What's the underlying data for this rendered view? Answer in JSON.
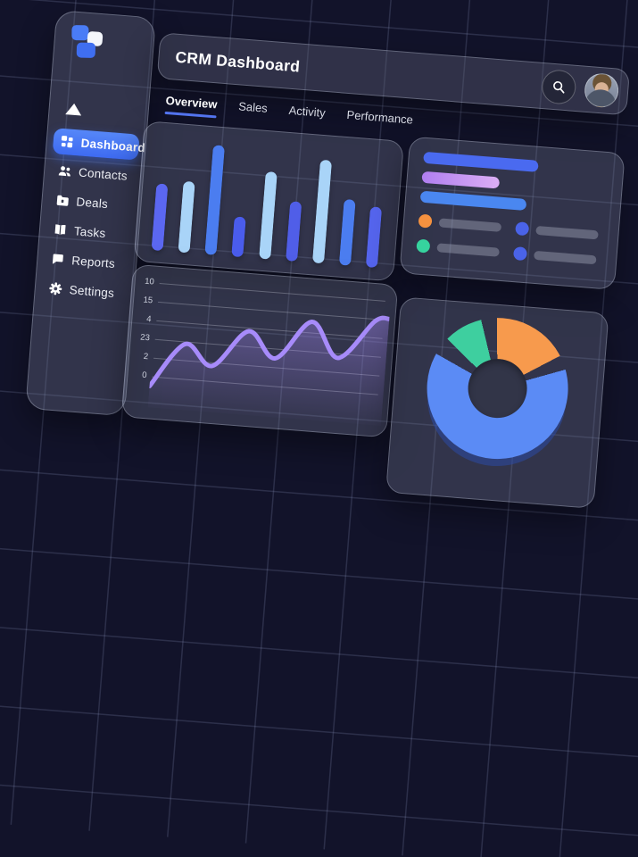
{
  "header": {
    "title": "CRM Dashboard"
  },
  "tabs": [
    {
      "label": "Overview",
      "active": true
    },
    {
      "label": "Sales",
      "active": false
    },
    {
      "label": "Activity",
      "active": false
    },
    {
      "label": "Performance",
      "active": false
    }
  ],
  "sidebar": {
    "logo": "three-overlapping-squares",
    "collapse_icon": "triangle-up",
    "items": [
      {
        "label": "Dashboard",
        "icon": "grid-icon",
        "active": true
      },
      {
        "label": "Contacts",
        "icon": "people-icon",
        "active": false
      },
      {
        "label": "Deals",
        "icon": "folder-icon",
        "active": false
      },
      {
        "label": "Tasks",
        "icon": "book-icon",
        "active": false
      },
      {
        "label": "Reports",
        "icon": "chat-icon",
        "active": false
      },
      {
        "label": "Settings",
        "icon": "gear-icon",
        "active": false
      }
    ]
  },
  "colors": {
    "background": "#12132a",
    "grid_line": "rgba(150,160,200,0.20)",
    "panel": "rgba(118,124,146,0.32)",
    "accent_blue": "#4a7cf6",
    "tab_underline": "#5577f5",
    "line_purple": "#a78bfa",
    "status_orange": "#f5913f",
    "status_green": "#36d39e",
    "status_blue": "#4a63e8"
  },
  "activity_panel": {
    "bars": [
      {
        "color": "#4a6af0",
        "width_pct": 62
      },
      {
        "color": "#b07ef0",
        "color2": "#dcaef5",
        "width_pct": 42
      },
      {
        "color": "#4a87f0",
        "width_pct": 57
      }
    ],
    "legend": [
      {
        "dot": "#f5913f"
      },
      {
        "dot": "#4a63e8"
      },
      {
        "dot": "#36d39e"
      },
      {
        "dot": "#4a63e8"
      }
    ]
  },
  "chart_data": [
    {
      "type": "bar",
      "title": "",
      "categories": [
        "",
        "",
        "",
        "",
        "",
        "",
        "",
        "",
        ""
      ],
      "values": [
        58,
        62,
        95,
        35,
        76,
        52,
        90,
        57,
        53
      ],
      "colors": [
        "#5b67f1",
        "#a9d4f8",
        "#4b7df0",
        "#4a5cec",
        "#a9d4f8",
        "#505ee8",
        "#a9d4f8",
        "#4b7df0",
        "#5565ee"
      ],
      "ylim": [
        0,
        100
      ],
      "grid": false
    },
    {
      "type": "area",
      "title": "",
      "color": "#a78bfa",
      "ytick_labels": [
        "10",
        "15",
        "4",
        "23",
        "2",
        "0"
      ],
      "grid": true,
      "points": [
        [
          0,
          128
        ],
        [
          36,
          78
        ],
        [
          68,
          100
        ],
        [
          106,
          58
        ],
        [
          138,
          86
        ],
        [
          176,
          42
        ],
        [
          208,
          80
        ],
        [
          246,
          36
        ],
        [
          262,
          32
        ]
      ]
    },
    {
      "type": "pie",
      "title": "",
      "donut": true,
      "from_deg": 310,
      "segments": [
        {
          "name": "green",
          "color": "#3ecf9f",
          "start": 0,
          "end": 32,
          "share_pct": 9
        },
        {
          "name": "orange",
          "color": "#f79a4d",
          "start": 45,
          "end": 108,
          "share_pct": 17
        },
        {
          "name": "blue",
          "color": "#5b8bf5",
          "start": 120,
          "end": 345,
          "share_pct": 62
        }
      ]
    }
  ]
}
